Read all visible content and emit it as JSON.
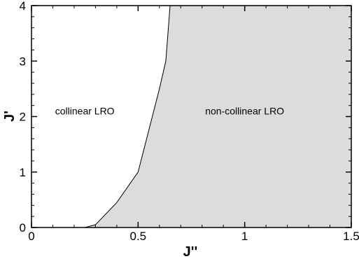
{
  "chart_data": {
    "type": "area",
    "xlabel": "J''",
    "ylabel": "J'",
    "xlim": [
      0,
      1.5
    ],
    "ylim": [
      0,
      4
    ],
    "x_ticks": [
      0,
      0.5,
      1,
      1.5
    ],
    "x_tick_labels": [
      "0",
      "0.5",
      "1",
      "1.5"
    ],
    "y_ticks": [
      0,
      1,
      2,
      3,
      4
    ],
    "y_tick_labels": [
      "0",
      "1",
      "2",
      "3",
      "4"
    ],
    "grid": false,
    "boundary": {
      "x": [
        0.25,
        0.3,
        0.4,
        0.5,
        0.6,
        0.63,
        0.65
      ],
      "y": [
        0,
        0.05,
        0.45,
        1.0,
        2.5,
        3.0,
        4.0
      ]
    },
    "regions": [
      {
        "label": "collinear LRO",
        "x": 0.25,
        "y": 2.1,
        "fill": "#ffffff"
      },
      {
        "label": "non-collinear LRO",
        "x": 1.0,
        "y": 2.1,
        "fill": "#dcdcdc"
      }
    ]
  }
}
